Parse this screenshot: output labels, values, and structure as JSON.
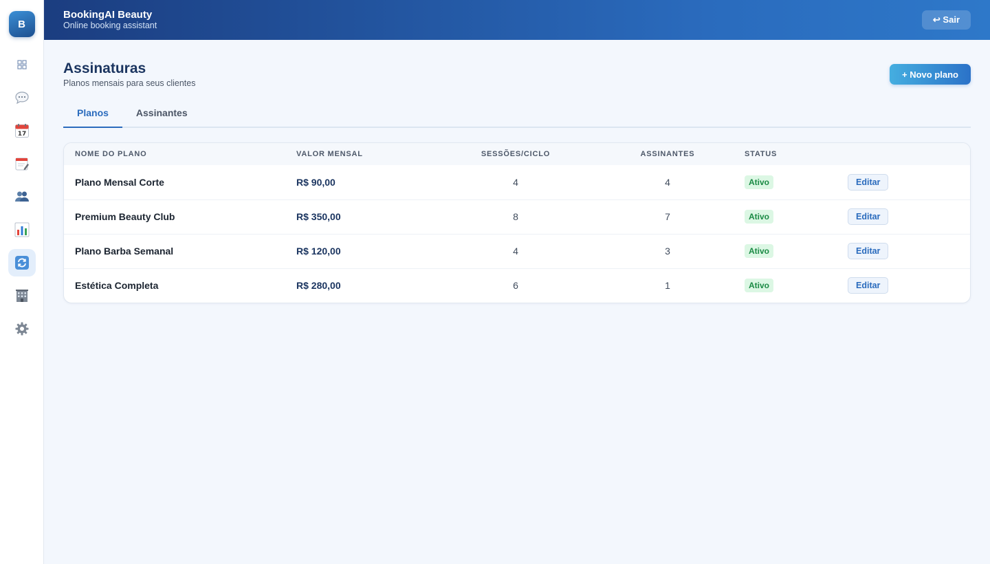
{
  "sidebar": {
    "brand_letter": "B",
    "items": [
      {
        "icon": "dashboard-grid-icon",
        "active": false
      },
      {
        "icon": "chat-bubble-icon",
        "active": false
      },
      {
        "icon": "calendar-icon",
        "active": false
      },
      {
        "icon": "notepad-icon",
        "active": false
      },
      {
        "icon": "users-icon",
        "active": false
      },
      {
        "icon": "bar-chart-icon",
        "active": false
      },
      {
        "icon": "refresh-icon",
        "active": true
      },
      {
        "icon": "building-icon",
        "active": false
      },
      {
        "icon": "gear-icon",
        "active": false
      }
    ]
  },
  "header": {
    "app_name": "BookingAI Beauty",
    "app_subtitle": "Online booking assistant",
    "logout_label": "↩ Sair"
  },
  "page": {
    "title": "Assinaturas",
    "subtitle": "Planos mensais para seus clientes",
    "new_plan_label": "+ Novo plano"
  },
  "tabs": [
    {
      "label": "Planos",
      "active": true
    },
    {
      "label": "Assinantes",
      "active": false
    }
  ],
  "table": {
    "columns": [
      "NOME DO PLANO",
      "VALOR MENSAL",
      "SESSÕES/CICLO",
      "ASSINANTES",
      "STATUS",
      ""
    ],
    "rows": [
      {
        "name": "Plano Mensal Corte",
        "price": "R$ 90,00",
        "sessions": "4",
        "subscribers": "4",
        "status": "Ativo",
        "action": "Editar"
      },
      {
        "name": "Premium Beauty Club",
        "price": "R$ 350,00",
        "sessions": "8",
        "subscribers": "7",
        "status": "Ativo",
        "action": "Editar"
      },
      {
        "name": "Plano Barba Semanal",
        "price": "R$ 120,00",
        "sessions": "4",
        "subscribers": "3",
        "status": "Ativo",
        "action": "Editar"
      },
      {
        "name": "Estética Completa",
        "price": "R$ 280,00",
        "sessions": "6",
        "subscribers": "1",
        "status": "Ativo",
        "action": "Editar"
      }
    ]
  },
  "colors": {
    "accent": "#2a6bbd",
    "header_dark": "#1b3d80",
    "status_active_bg": "#dcf7e4",
    "status_active_text": "#1a8a44"
  }
}
